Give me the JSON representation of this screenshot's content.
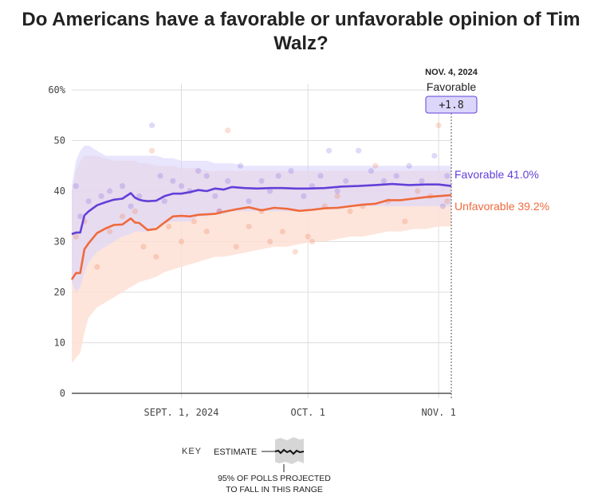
{
  "title": "Do Americans have a favorable or unfavorable opinion of Tim Walz?",
  "colors": {
    "favorable": "#6240d8",
    "unfavorable": "#ef6a3c",
    "favorable_band": "#d9d3fb",
    "unfavorable_band": "#fde0d5",
    "axis": "#333333",
    "grid": "#dddddd"
  },
  "chart_data": {
    "type": "line",
    "title": "Do Americans have a favorable or unfavorable opinion of Tim Walz?",
    "xlabel": "",
    "ylabel": "",
    "ylim": [
      0,
      60
    ],
    "yticks": [
      0,
      10,
      20,
      30,
      40,
      50,
      60
    ],
    "ytick_labels": [
      "0",
      "10",
      "20",
      "30",
      "40",
      "50",
      "60%"
    ],
    "xlim": [
      "2024-08-06",
      "2024-11-04"
    ],
    "xticks": [
      {
        "date": "2024-09-01",
        "label": "SEPT. 1, 2024"
      },
      {
        "date": "2024-10-01",
        "label": "OCT. 1"
      },
      {
        "date": "2024-11-01",
        "label": "NOV. 1"
      }
    ],
    "grid": true,
    "series": [
      {
        "name": "Favorable",
        "end_label": "Favorable 41.0%",
        "final_value": 41.0,
        "x": [
          "2024-08-06",
          "2024-08-07",
          "2024-08-08",
          "2024-08-09",
          "2024-08-10",
          "2024-08-12",
          "2024-08-14",
          "2024-08-16",
          "2024-08-18",
          "2024-08-20",
          "2024-08-21",
          "2024-08-22",
          "2024-08-23",
          "2024-08-24",
          "2024-08-26",
          "2024-08-28",
          "2024-08-30",
          "2024-09-01",
          "2024-09-03",
          "2024-09-05",
          "2024-09-07",
          "2024-09-09",
          "2024-09-11",
          "2024-09-13",
          "2024-09-16",
          "2024-09-19",
          "2024-09-22",
          "2024-09-25",
          "2024-09-28",
          "2024-10-01",
          "2024-10-05",
          "2024-10-09",
          "2024-10-13",
          "2024-10-17",
          "2024-10-21",
          "2024-10-25",
          "2024-10-29",
          "2024-11-01",
          "2024-11-04"
        ],
        "y": [
          31.5,
          31.8,
          31.8,
          35.2,
          36.0,
          37.2,
          37.8,
          38.3,
          38.5,
          39.6,
          38.7,
          38.3,
          38.1,
          38.0,
          38.1,
          39.0,
          39.5,
          39.5,
          39.8,
          40.2,
          40.0,
          40.5,
          40.3,
          40.8,
          40.6,
          40.5,
          40.6,
          40.6,
          40.5,
          40.5,
          40.6,
          40.9,
          41.0,
          41.2,
          41.4,
          41.2,
          41.3,
          41.3,
          41.0
        ],
        "band_upper": [
          41,
          46,
          48,
          49,
          49,
          48,
          47,
          47,
          47,
          47,
          47,
          47,
          47,
          47,
          47,
          46.5,
          46.5,
          46,
          46,
          46,
          46,
          45.5,
          45.5,
          45.5,
          45,
          45,
          45,
          45,
          45,
          45,
          45,
          45,
          45,
          45,
          45,
          45,
          45,
          45,
          45
        ],
        "band_lower": [
          22,
          20,
          21,
          24,
          26,
          28,
          29,
          30,
          31,
          31.5,
          32,
          32,
          32,
          32,
          33,
          33.5,
          34,
          34,
          34,
          35,
          35,
          35.5,
          35.5,
          36,
          36,
          36,
          36,
          36,
          36,
          36,
          36.5,
          36.5,
          37,
          37,
          37,
          37,
          37,
          37,
          37
        ]
      },
      {
        "name": "Unfavorable",
        "end_label": "Unfavorable 39.2%",
        "final_value": 39.2,
        "x": [
          "2024-08-06",
          "2024-08-07",
          "2024-08-08",
          "2024-08-09",
          "2024-08-10",
          "2024-08-12",
          "2024-08-14",
          "2024-08-16",
          "2024-08-18",
          "2024-08-20",
          "2024-08-21",
          "2024-08-22",
          "2024-08-24",
          "2024-08-26",
          "2024-08-28",
          "2024-08-30",
          "2024-09-01",
          "2024-09-03",
          "2024-09-05",
          "2024-09-07",
          "2024-09-09",
          "2024-09-11",
          "2024-09-14",
          "2024-09-17",
          "2024-09-20",
          "2024-09-23",
          "2024-09-26",
          "2024-09-29",
          "2024-10-02",
          "2024-10-05",
          "2024-10-08",
          "2024-10-11",
          "2024-10-14",
          "2024-10-17",
          "2024-10-20",
          "2024-10-23",
          "2024-10-26",
          "2024-10-29",
          "2024-11-01",
          "2024-11-04"
        ],
        "y": [
          22.5,
          23.8,
          23.8,
          28.5,
          29.7,
          31.7,
          32.6,
          33.3,
          33.4,
          34.6,
          33.8,
          33.7,
          32.3,
          32.5,
          33.8,
          35.0,
          35.1,
          35.0,
          35.3,
          35.4,
          35.5,
          35.9,
          36.4,
          36.8,
          36.2,
          36.7,
          36.5,
          36.1,
          36.3,
          36.6,
          36.7,
          37.0,
          37.3,
          37.5,
          38.2,
          38.2,
          38.5,
          38.8,
          39.0,
          39.2
        ],
        "band_upper": [
          40,
          44,
          46,
          47,
          47,
          47,
          46.5,
          46,
          46,
          46,
          46,
          45.5,
          45.5,
          45,
          45,
          45,
          44.5,
          44.5,
          44.5,
          44,
          44,
          44,
          44,
          44,
          44,
          44,
          44,
          44,
          44,
          44,
          44,
          44,
          44,
          44,
          44,
          44,
          44,
          44,
          44,
          44
        ],
        "band_lower": [
          6,
          7,
          8,
          12,
          15,
          17,
          18,
          19,
          20,
          21,
          21.5,
          22,
          22.5,
          23,
          24,
          24.5,
          25,
          25.5,
          26,
          26.5,
          27,
          27,
          27.5,
          28,
          28.5,
          29,
          29,
          29.5,
          30,
          30,
          30.5,
          31,
          31,
          31.5,
          32,
          32,
          32.5,
          32.5,
          33,
          33
        ]
      }
    ],
    "favorable_polls": [
      [
        "2024-08-07",
        41
      ],
      [
        "2024-08-08",
        35
      ],
      [
        "2024-08-10",
        38
      ],
      [
        "2024-08-13",
        39
      ],
      [
        "2024-08-15",
        40
      ],
      [
        "2024-08-18",
        41
      ],
      [
        "2024-08-20",
        37
      ],
      [
        "2024-08-22",
        39
      ],
      [
        "2024-08-25",
        53
      ],
      [
        "2024-08-27",
        43
      ],
      [
        "2024-08-28",
        38
      ],
      [
        "2024-08-30",
        42
      ],
      [
        "2024-09-01",
        41
      ],
      [
        "2024-09-03",
        40
      ],
      [
        "2024-09-05",
        44
      ],
      [
        "2024-09-07",
        43
      ],
      [
        "2024-09-09",
        39
      ],
      [
        "2024-09-10",
        36
      ],
      [
        "2024-09-12",
        42
      ],
      [
        "2024-09-15",
        45
      ],
      [
        "2024-09-17",
        38
      ],
      [
        "2024-09-20",
        42
      ],
      [
        "2024-09-22",
        40
      ],
      [
        "2024-09-24",
        43
      ],
      [
        "2024-09-27",
        44
      ],
      [
        "2024-09-30",
        39
      ],
      [
        "2024-10-02",
        41
      ],
      [
        "2024-10-04",
        43
      ],
      [
        "2024-10-06",
        48
      ],
      [
        "2024-10-08",
        40
      ],
      [
        "2024-10-10",
        42
      ],
      [
        "2024-10-13",
        48
      ],
      [
        "2024-10-16",
        44
      ],
      [
        "2024-10-19",
        42
      ],
      [
        "2024-10-22",
        43
      ],
      [
        "2024-10-25",
        45
      ],
      [
        "2024-10-28",
        42
      ],
      [
        "2024-10-31",
        47
      ],
      [
        "2024-11-02",
        37
      ],
      [
        "2024-11-03",
        43
      ]
    ],
    "unfavorable_polls": [
      [
        "2024-08-07",
        31
      ],
      [
        "2024-08-09",
        34
      ],
      [
        "2024-08-12",
        25
      ],
      [
        "2024-08-15",
        32
      ],
      [
        "2024-08-18",
        35
      ],
      [
        "2024-08-21",
        36
      ],
      [
        "2024-08-23",
        29
      ],
      [
        "2024-08-25",
        48
      ],
      [
        "2024-08-26",
        27
      ],
      [
        "2024-08-29",
        33
      ],
      [
        "2024-09-01",
        30
      ],
      [
        "2024-09-04",
        34
      ],
      [
        "2024-09-07",
        32
      ],
      [
        "2024-09-10",
        36
      ],
      [
        "2024-09-12",
        52
      ],
      [
        "2024-09-14",
        29
      ],
      [
        "2024-09-17",
        33
      ],
      [
        "2024-09-20",
        36
      ],
      [
        "2024-09-22",
        30
      ],
      [
        "2024-09-25",
        32
      ],
      [
        "2024-09-28",
        28
      ],
      [
        "2024-10-01",
        31
      ],
      [
        "2024-10-02",
        30
      ],
      [
        "2024-10-05",
        37
      ],
      [
        "2024-10-08",
        39
      ],
      [
        "2024-10-11",
        36
      ],
      [
        "2024-10-14",
        37
      ],
      [
        "2024-10-17",
        45
      ],
      [
        "2024-10-20",
        38
      ],
      [
        "2024-10-24",
        34
      ],
      [
        "2024-10-27",
        40
      ],
      [
        "2024-10-30",
        39
      ],
      [
        "2024-11-01",
        53
      ],
      [
        "2024-11-03",
        38
      ]
    ]
  },
  "annotation": {
    "date": "NOV. 4, 2024",
    "leader": "Favorable",
    "margin": "+1.8"
  },
  "key": {
    "title": "KEY",
    "estimate_label": "ESTIMATE",
    "range_line1": "95% OF POLLS PROJECTED",
    "range_line2": "TO FALL IN THIS RANGE"
  }
}
